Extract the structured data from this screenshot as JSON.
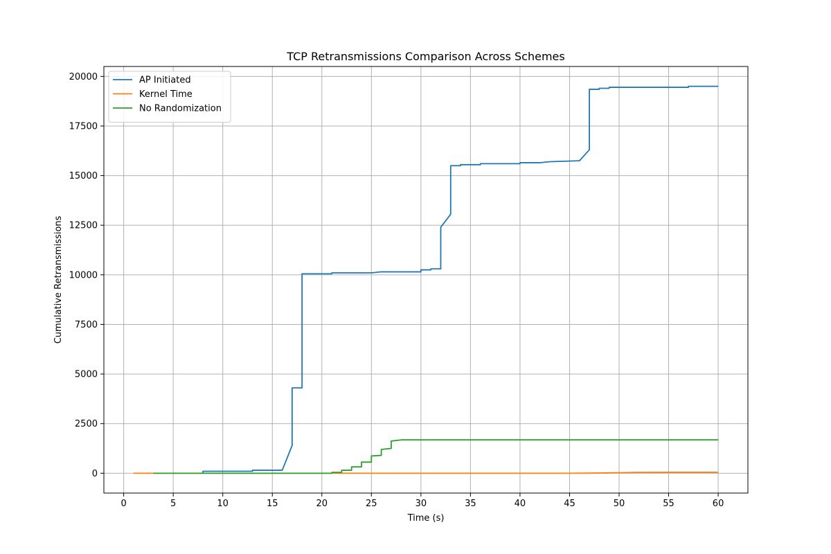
{
  "chart_data": {
    "type": "line",
    "title": "TCP Retransmissions Comparison Across Schemes",
    "xlabel": "Time (s)",
    "ylabel": "Cumulative Retransmissions",
    "xlim": [
      -2,
      63
    ],
    "ylim": [
      -1000,
      20500
    ],
    "xticks": [
      0,
      5,
      10,
      15,
      20,
      25,
      30,
      35,
      40,
      45,
      50,
      55,
      60
    ],
    "yticks": [
      0,
      2500,
      5000,
      7500,
      10000,
      12500,
      15000,
      17500,
      20000
    ],
    "grid": true,
    "legend_position": "top-left",
    "series": [
      {
        "name": "AP Initiated",
        "color": "#1f77b4",
        "points": [
          [
            8,
            0
          ],
          [
            8,
            100
          ],
          [
            13,
            100
          ],
          [
            13,
            150
          ],
          [
            16,
            150
          ],
          [
            17,
            1400
          ],
          [
            17,
            4300
          ],
          [
            18,
            4300
          ],
          [
            18,
            10050
          ],
          [
            21,
            10050
          ],
          [
            21,
            10100
          ],
          [
            25,
            10100
          ],
          [
            26,
            10150
          ],
          [
            30,
            10150
          ],
          [
            30,
            10250
          ],
          [
            31,
            10250
          ],
          [
            31,
            10300
          ],
          [
            32,
            10300
          ],
          [
            32,
            12400
          ],
          [
            33,
            13050
          ],
          [
            33,
            15500
          ],
          [
            34,
            15500
          ],
          [
            34,
            15550
          ],
          [
            36,
            15550
          ],
          [
            36,
            15600
          ],
          [
            40,
            15600
          ],
          [
            40,
            15650
          ],
          [
            42,
            15650
          ],
          [
            43,
            15700
          ],
          [
            46,
            15750
          ],
          [
            47,
            16300
          ],
          [
            47,
            19350
          ],
          [
            48,
            19350
          ],
          [
            48,
            19400
          ],
          [
            49,
            19400
          ],
          [
            49,
            19450
          ],
          [
            57,
            19450
          ],
          [
            57,
            19500
          ],
          [
            60,
            19500
          ]
        ]
      },
      {
        "name": "Kernel Time",
        "color": "#ff7f0e",
        "points": [
          [
            1,
            0
          ],
          [
            45,
            0
          ],
          [
            48,
            10
          ],
          [
            50,
            25
          ],
          [
            52,
            40
          ],
          [
            55,
            45
          ],
          [
            60,
            45
          ]
        ]
      },
      {
        "name": "No Randomization",
        "color": "#2ca02c",
        "points": [
          [
            3,
            0
          ],
          [
            21,
            0
          ],
          [
            21,
            40
          ],
          [
            22,
            40
          ],
          [
            22,
            150
          ],
          [
            23,
            150
          ],
          [
            23,
            320
          ],
          [
            24,
            320
          ],
          [
            24,
            560
          ],
          [
            25,
            560
          ],
          [
            25,
            870
          ],
          [
            26,
            900
          ],
          [
            26,
            1200
          ],
          [
            27,
            1250
          ],
          [
            27,
            1620
          ],
          [
            28,
            1680
          ],
          [
            60,
            1680
          ]
        ]
      }
    ]
  }
}
